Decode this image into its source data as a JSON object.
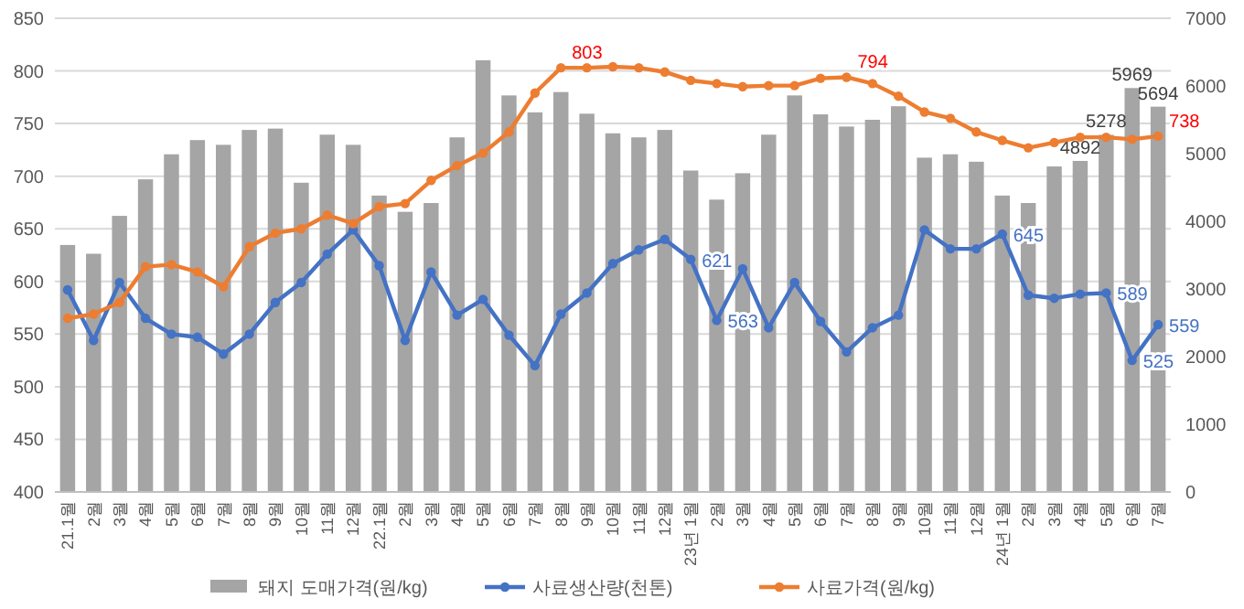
{
  "chart_data": {
    "type": "bar",
    "categories": [
      "21.1월",
      "2월",
      "3월",
      "4월",
      "5월",
      "6월",
      "7월",
      "8월",
      "9월",
      "10월",
      "11월",
      "12월",
      "22.1월",
      "2월",
      "3월",
      "4월",
      "5월",
      "6월",
      "7월",
      "8월",
      "9월",
      "10월",
      "11월",
      "12월",
      "23년 1월",
      "2월",
      "3월",
      "4월",
      "5월",
      "6월",
      "7월",
      "8월",
      "9월",
      "10월",
      "11월",
      "12월",
      "24년 1월",
      "2월",
      "3월",
      "4월",
      "5월",
      "6월",
      "7월"
    ],
    "series": [
      {
        "name": "돼지 도매가격(원/kg)",
        "axis": "y2",
        "color": "#a5a5a5",
        "values": [
          3650,
          3520,
          4080,
          4620,
          4990,
          5200,
          5130,
          5350,
          5370,
          4570,
          5280,
          5130,
          4380,
          4140,
          4270,
          5240,
          6380,
          5860,
          5610,
          5910,
          5590,
          5300,
          5240,
          5350,
          4750,
          4320,
          4710,
          5280,
          5860,
          5580,
          5400,
          5500,
          5700,
          4940,
          4990,
          4880,
          4380,
          4270,
          4810,
          4892,
          5278,
          5969,
          5694
        ],
        "value_labels": [
          null,
          null,
          null,
          null,
          null,
          null,
          null,
          null,
          null,
          null,
          null,
          null,
          null,
          null,
          null,
          null,
          null,
          null,
          null,
          null,
          null,
          null,
          null,
          null,
          null,
          null,
          null,
          null,
          null,
          null,
          null,
          null,
          null,
          null,
          null,
          null,
          null,
          null,
          null,
          "4892",
          "5278",
          "5969",
          "5694"
        ]
      },
      {
        "name": "사료생산량(천톤)",
        "type": "line",
        "axis": "y",
        "color": "#4472c4",
        "marker": "circle",
        "values": [
          592,
          544,
          599,
          565,
          550,
          547,
          531,
          550,
          580,
          599,
          626,
          649,
          615,
          544,
          609,
          568,
          583,
          549,
          520,
          569,
          589,
          617,
          630,
          640,
          621,
          563,
          612,
          556,
          599,
          562,
          533,
          556,
          568,
          649,
          631,
          631,
          645,
          587,
          584,
          588,
          589,
          525,
          559
        ],
        "value_labels": [
          null,
          null,
          null,
          null,
          null,
          null,
          null,
          null,
          null,
          null,
          null,
          null,
          null,
          null,
          null,
          null,
          null,
          null,
          null,
          null,
          null,
          null,
          null,
          null,
          "621",
          "563",
          null,
          null,
          null,
          null,
          null,
          null,
          null,
          null,
          null,
          null,
          "645",
          null,
          null,
          null,
          "589",
          "525",
          "559"
        ]
      },
      {
        "name": "사료가격(원/kg)",
        "type": "line",
        "axis": "y",
        "color": "#ed7d31",
        "marker": "circle",
        "values": [
          565,
          569,
          580,
          614,
          616,
          609,
          595,
          633,
          646,
          650,
          663,
          655,
          671,
          674,
          696,
          710,
          722,
          742,
          779,
          803,
          803,
          804,
          803,
          799,
          791,
          788,
          785,
          786,
          786,
          793,
          794,
          788,
          776,
          761,
          755,
          742,
          734,
          727,
          732,
          737,
          737,
          735,
          738
        ],
        "value_labels": [
          null,
          null,
          null,
          null,
          null,
          null,
          null,
          null,
          null,
          null,
          null,
          null,
          null,
          null,
          null,
          null,
          null,
          null,
          null,
          "803",
          null,
          null,
          null,
          null,
          null,
          null,
          null,
          null,
          null,
          null,
          "794",
          null,
          null,
          null,
          null,
          null,
          null,
          null,
          null,
          null,
          null,
          null,
          "738"
        ]
      }
    ],
    "ylim": [
      400,
      850
    ],
    "yticks": [
      400,
      450,
      500,
      550,
      600,
      650,
      700,
      750,
      800,
      850
    ],
    "y2lim": [
      0,
      7000
    ],
    "y2ticks": [
      0,
      1000,
      2000,
      3000,
      4000,
      5000,
      6000,
      7000
    ],
    "grid": "y",
    "legend": "bottom"
  }
}
